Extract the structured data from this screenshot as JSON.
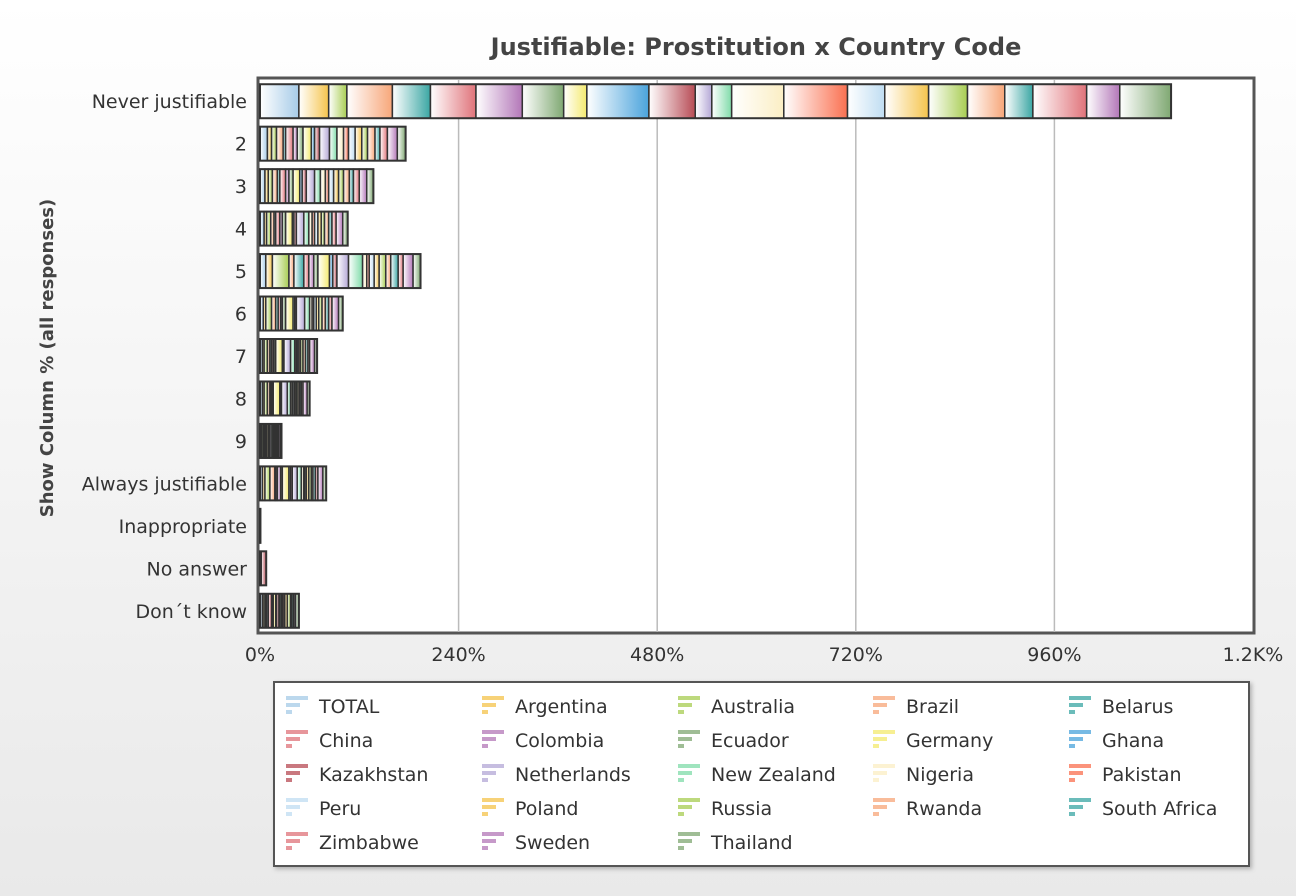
{
  "chart_data": {
    "type": "bar",
    "orientation": "horizontal",
    "stacked": true,
    "title": "Justifiable: Prostitution x Country Code",
    "ylabel": "Show Column % (all responses)",
    "xlabel": "",
    "xlim": [
      0,
      1200
    ],
    "x_ticks": [
      {
        "value": 0,
        "label": "0%"
      },
      {
        "value": 240,
        "label": "240%"
      },
      {
        "value": 480,
        "label": "480%"
      },
      {
        "value": 720,
        "label": "720%"
      },
      {
        "value": 960,
        "label": "960%"
      },
      {
        "value": 1200,
        "label": "1.2K%"
      }
    ],
    "grid": true,
    "legend_position": "bottom",
    "categories": [
      "Never justifiable",
      "2",
      "3",
      "4",
      "5",
      "6",
      "7",
      "8",
      "9",
      "Always justifiable",
      "Inappropriate",
      "No answer",
      "Don´t know"
    ],
    "series": [
      {
        "name": "TOTAL",
        "color": "#a6cbe8",
        "values": [
          47,
          9,
          6,
          5,
          7,
          4,
          3,
          3,
          1,
          3,
          0.5,
          1.5,
          3
        ]
      },
      {
        "name": "Argentina",
        "color": "#f5c44c",
        "values": [
          36,
          5,
          4,
          3,
          8,
          3,
          2,
          2,
          1,
          3,
          0,
          0,
          2
        ]
      },
      {
        "name": "Australia",
        "color": "#a8cd52",
        "values": [
          22,
          6,
          5,
          5,
          20,
          7,
          4,
          4,
          2,
          6,
          0,
          0,
          2
        ]
      },
      {
        "name": "Brazil",
        "color": "#f7a679",
        "values": [
          55,
          8,
          6,
          4,
          6,
          5,
          3,
          3,
          1,
          6,
          0,
          0,
          1
        ]
      },
      {
        "name": "Belarus",
        "color": "#3aa6a3",
        "values": [
          46,
          3,
          3,
          2,
          12,
          3,
          2,
          1,
          1,
          1,
          0,
          0,
          2
        ]
      },
      {
        "name": "China",
        "color": "#e0737a",
        "values": [
          55,
          9,
          7,
          5,
          6,
          3,
          2,
          1,
          0.5,
          2,
          0,
          0,
          4
        ]
      },
      {
        "name": "Colombia",
        "color": "#b377b8",
        "values": [
          56,
          5,
          4,
          3,
          6,
          2,
          1,
          1,
          1,
          4,
          0,
          0,
          1
        ]
      },
      {
        "name": "Ecuador",
        "color": "#7fa872",
        "values": [
          50,
          7,
          5,
          4,
          5,
          4,
          2,
          1,
          1,
          2,
          0,
          0,
          1
        ]
      },
      {
        "name": "Germany",
        "color": "#f4ea6e",
        "values": [
          28,
          10,
          8,
          8,
          14,
          9,
          8,
          8,
          2,
          8,
          0,
          0,
          3
        ]
      },
      {
        "name": "Ghana",
        "color": "#4aa3dc",
        "values": [
          75,
          4,
          3,
          2,
          4,
          2,
          1,
          1,
          0.5,
          2,
          0,
          0,
          1
        ]
      },
      {
        "name": "Kazakhstan",
        "color": "#b74b55",
        "values": [
          56,
          6,
          5,
          3,
          5,
          2,
          1,
          1,
          0.5,
          2,
          0,
          6,
          3
        ]
      },
      {
        "name": "Netherlands",
        "color": "#b4a7d6",
        "values": [
          20,
          12,
          10,
          9,
          14,
          10,
          8,
          7,
          2,
          6,
          0,
          0,
          1
        ]
      },
      {
        "name": "New Zealand",
        "color": "#7fdba9",
        "values": [
          24,
          9,
          7,
          6,
          17,
          6,
          5,
          4,
          2,
          5,
          0,
          0,
          2
        ]
      },
      {
        "name": "Nigeria",
        "color": "#fbeec4",
        "values": [
          63,
          8,
          6,
          4,
          5,
          3,
          2,
          2,
          1,
          3,
          0,
          0,
          1
        ]
      },
      {
        "name": "Pakistan",
        "color": "#fa7050",
        "values": [
          77,
          6,
          4,
          3,
          3,
          2,
          1,
          1,
          0.5,
          1,
          0,
          0,
          2
        ]
      },
      {
        "name": "Peru",
        "color": "#bfddf2",
        "values": [
          45,
          8,
          6,
          4,
          6,
          3,
          2,
          2,
          1,
          2,
          0,
          0,
          1
        ]
      },
      {
        "name": "Poland",
        "color": "#f5c44c",
        "values": [
          53,
          8,
          6,
          4,
          6,
          3,
          2,
          2,
          1,
          3,
          0,
          0,
          3
        ]
      },
      {
        "name": "Russia",
        "color": "#a8cd52",
        "values": [
          47,
          7,
          6,
          4,
          8,
          4,
          3,
          2,
          1,
          3,
          0,
          0,
          4
        ]
      },
      {
        "name": "Rwanda",
        "color": "#f7a679",
        "values": [
          45,
          9,
          7,
          5,
          6,
          4,
          3,
          2,
          1,
          2,
          0,
          0,
          1
        ]
      },
      {
        "name": "South Africa",
        "color": "#3aa6a3",
        "values": [
          34,
          6,
          5,
          4,
          9,
          4,
          3,
          2,
          1,
          3,
          0,
          0,
          2
        ]
      },
      {
        "name": "Zimbabwe",
        "color": "#e0737a",
        "values": [
          65,
          9,
          7,
          5,
          6,
          4,
          2,
          2,
          1,
          3,
          0,
          0,
          1
        ]
      },
      {
        "name": "Sweden",
        "color": "#b377b8",
        "values": [
          40,
          12,
          9,
          8,
          12,
          8,
          6,
          5,
          2,
          6,
          0,
          0,
          2
        ]
      },
      {
        "name": "Thailand",
        "color": "#7fa872",
        "values": [
          62,
          10,
          8,
          6,
          9,
          5,
          3,
          3,
          1,
          4,
          0,
          0,
          4
        ]
      }
    ]
  }
}
